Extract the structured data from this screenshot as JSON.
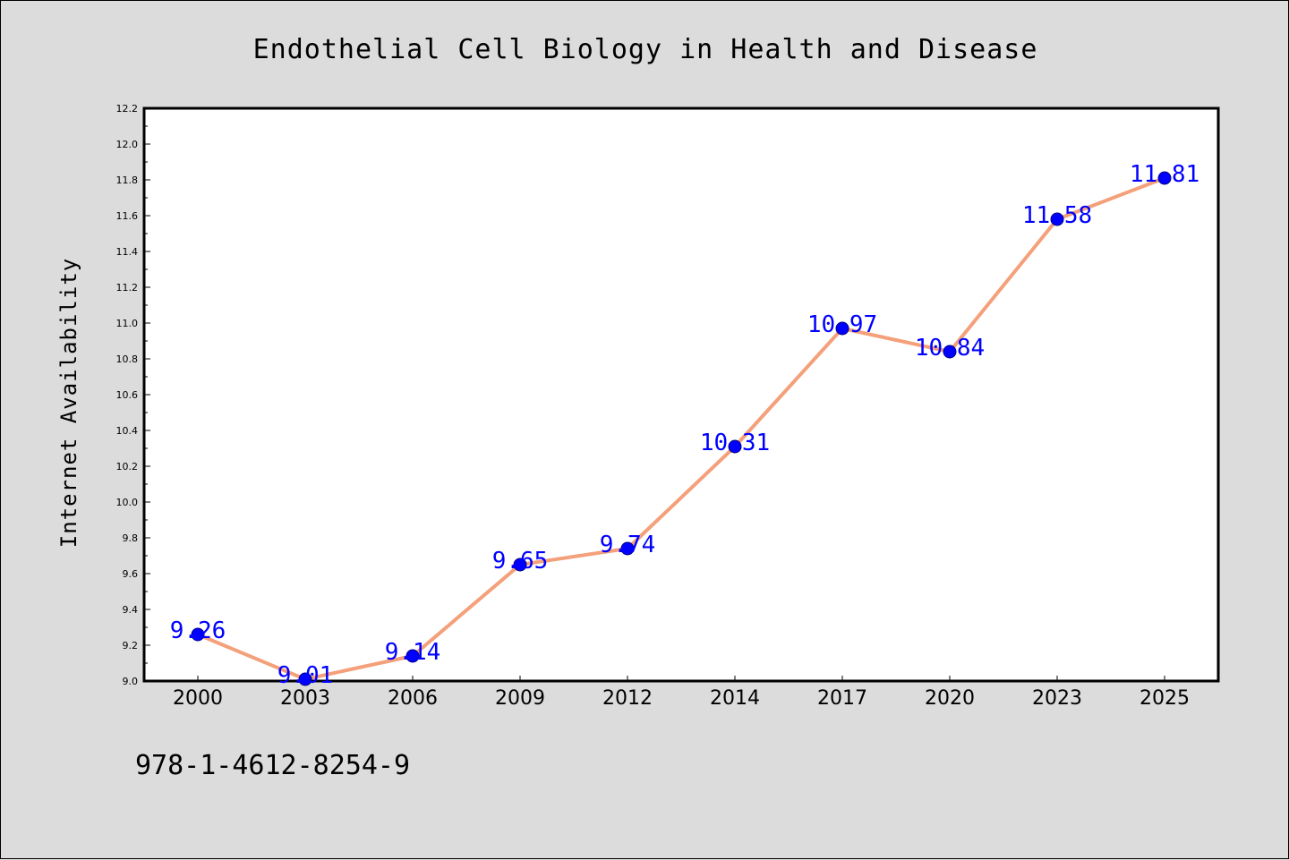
{
  "chart_data": {
    "type": "line",
    "title": "Endothelial Cell Biology in Health and Disease",
    "xlabel": "",
    "ylabel": "Internet Availability",
    "categories": [
      "2000",
      "2003",
      "2006",
      "2009",
      "2012",
      "2014",
      "2017",
      "2020",
      "2023",
      "2025"
    ],
    "series": [
      {
        "values": [
          9.26,
          9.01,
          9.14,
          9.65,
          9.74,
          10.31,
          10.97,
          10.84,
          11.58,
          11.81
        ]
      }
    ],
    "data_labels": [
      "9.26",
      "9.01",
      "9.14",
      "9.65",
      "9.74",
      "10.31",
      "10.97",
      "10.84",
      "11.58",
      "11.81"
    ],
    "ylim": [
      9.0,
      12.2
    ],
    "yticks": [
      "9.0",
      "9.2",
      "9.4",
      "9.6",
      "9.8",
      "10.0",
      "10.2",
      "10.4",
      "10.6",
      "10.8",
      "11.0",
      "11.2",
      "11.4",
      "11.6",
      "11.8",
      "12.0",
      "12.2"
    ],
    "grid": false,
    "legend": "none",
    "colors": {
      "line": "#f4a07a",
      "marker": "#0000ff",
      "marker_edge": "#00008b",
      "data_label": "#0000ff",
      "plot_background": "#ffffff",
      "figure_background": "#dcdcdc"
    }
  },
  "footer": {
    "isbn": "978-1-4612-8254-9"
  }
}
